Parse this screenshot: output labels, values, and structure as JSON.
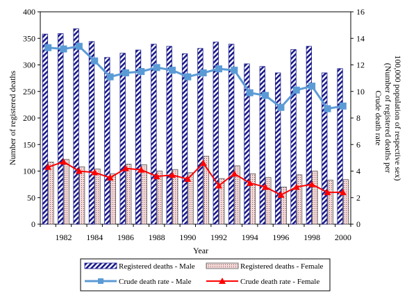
{
  "chart_data": {
    "type": "bar",
    "title": "",
    "xlabel": "Year",
    "ylabel_left": "Number of registered deaths",
    "ylabel_right_line1": "Crude death rate",
    "ylabel_right_line2": "(Number of registered deaths per",
    "ylabel_right_line3": "100,000 population of respective sex)",
    "years": [
      1981,
      1982,
      1983,
      1984,
      1985,
      1986,
      1987,
      1988,
      1989,
      1990,
      1991,
      1992,
      1993,
      1994,
      1995,
      1996,
      1997,
      1998,
      1999,
      2000
    ],
    "xtick_labels": [
      "1982",
      "1984",
      "1986",
      "1988",
      "1990",
      "1992",
      "1994",
      "1996",
      "1998",
      "2000"
    ],
    "ylim_left": [
      0,
      400
    ],
    "yticks_left": [
      "0",
      "50",
      "100",
      "150",
      "200",
      "250",
      "300",
      "350",
      "400"
    ],
    "ylim_right": [
      0,
      16
    ],
    "yticks_right": [
      "0",
      "2",
      "4",
      "6",
      "8",
      "10",
      "12",
      "14",
      "16"
    ],
    "bar_series": [
      {
        "name": "Registered deaths - Male",
        "values": [
          358,
          359,
          368,
          344,
          314,
          322,
          328,
          339,
          335,
          321,
          331,
          343,
          339,
          302,
          297,
          285,
          329,
          335,
          285,
          293
        ]
      },
      {
        "name": "Registered deaths - Female",
        "values": [
          117,
          122,
          108,
          104,
          95,
          113,
          112,
          100,
          103,
          97,
          128,
          86,
          110,
          95,
          88,
          70,
          93,
          100,
          83,
          84
        ]
      }
    ],
    "line_series": [
      {
        "name": "Crude death rate - Male",
        "color": "#5b9bd5",
        "marker": "square",
        "values": [
          13.3,
          13.2,
          13.4,
          12.3,
          11.1,
          11.4,
          11.5,
          11.8,
          11.6,
          11.1,
          11.4,
          11.7,
          11.6,
          9.9,
          9.7,
          8.8,
          10.1,
          10.4,
          8.7,
          8.9
        ]
      },
      {
        "name": "Crude death rate - Female",
        "color": "#ff0000",
        "marker": "triangle",
        "values": [
          4.3,
          4.7,
          4.0,
          3.9,
          3.5,
          4.2,
          4.1,
          3.6,
          3.7,
          3.4,
          4.6,
          2.9,
          3.8,
          3.1,
          2.8,
          2.2,
          2.8,
          3.0,
          2.4,
          2.4
        ]
      }
    ],
    "grid": false,
    "legend_placement": "bottom"
  }
}
